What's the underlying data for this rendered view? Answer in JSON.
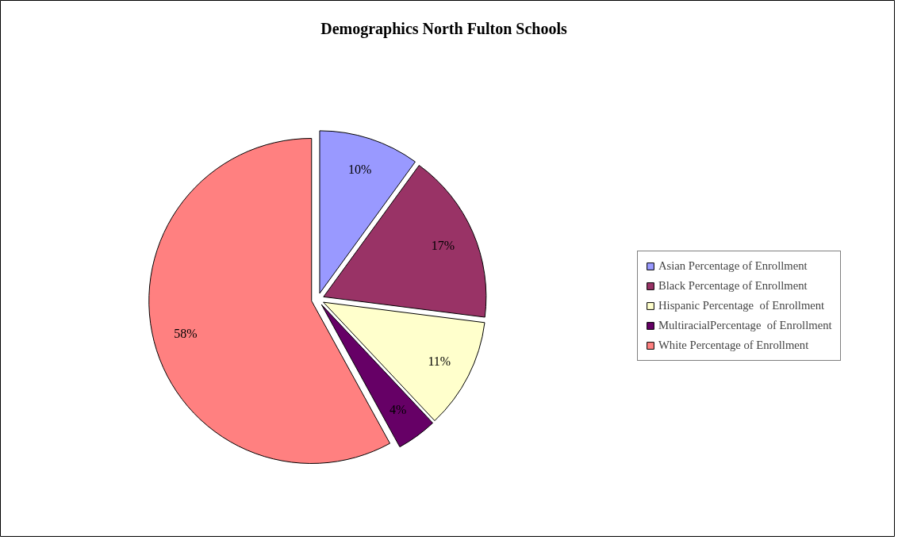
{
  "chart_data": {
    "type": "pie",
    "title": "Demographics North Fulton Schools",
    "categories": [
      "Asian Percentage of Enrollment",
      "Black Percentage of Enrollment",
      "Hispanic Percentage  of Enrollment",
      "MultiracialPercentage  of Enrollment",
      "White Percentage of Enrollment"
    ],
    "values": [
      10,
      17,
      11,
      4,
      58
    ],
    "colors": [
      "#9999ff",
      "#993366",
      "#ffffcc",
      "#660066",
      "#ff8080"
    ],
    "value_labels": [
      "10%",
      "17%",
      "11%",
      "4%",
      "58%"
    ],
    "legend": "right"
  }
}
